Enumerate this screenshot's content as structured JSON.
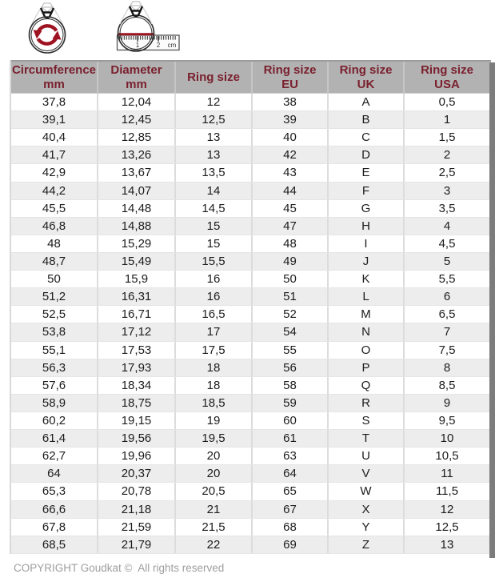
{
  "icons": {
    "circumference_icon": "ring-with-rotation-arrows",
    "diameter_icon": "ring-with-diameter-line-and-ruler",
    "ruler_labels": {
      "one": "1",
      "two": "2",
      "unit": "cm"
    }
  },
  "table": {
    "columns": [
      {
        "line1": "Circumference",
        "line2": "mm"
      },
      {
        "line1": "Diameter",
        "line2": "mm"
      },
      {
        "line1": "Ring size",
        "line2": ""
      },
      {
        "line1": "Ring size",
        "line2": "EU"
      },
      {
        "line1": "Ring size",
        "line2": "UK"
      },
      {
        "line1": "Ring size",
        "line2": "USA"
      }
    ],
    "rows": [
      [
        "37,8",
        "12,04",
        "12",
        "38",
        "A",
        "0,5"
      ],
      [
        "39,1",
        "12,45",
        "12,5",
        "39",
        "B",
        "1"
      ],
      [
        "40,4",
        "12,85",
        "13",
        "40",
        "C",
        "1,5"
      ],
      [
        "41,7",
        "13,26",
        "13",
        "42",
        "D",
        "2"
      ],
      [
        "42,9",
        "13,67",
        "13,5",
        "43",
        "E",
        "2,5"
      ],
      [
        "44,2",
        "14,07",
        "14",
        "44",
        "F",
        "3"
      ],
      [
        "45,5",
        "14,48",
        "14,5",
        "45",
        "G",
        "3,5"
      ],
      [
        "46,8",
        "14,88",
        "15",
        "47",
        "H",
        "4"
      ],
      [
        "48",
        "15,29",
        "15",
        "48",
        "I",
        "4,5"
      ],
      [
        "48,7",
        "15,49",
        "15,5",
        "49",
        "J",
        "5"
      ],
      [
        "50",
        "15,9",
        "16",
        "50",
        "K",
        "5,5"
      ],
      [
        "51,2",
        "16,31",
        "16",
        "51",
        "L",
        "6"
      ],
      [
        "52,5",
        "16,71",
        "16,5",
        "52",
        "M",
        "6,5"
      ],
      [
        "53,8",
        "17,12",
        "17",
        "54",
        "N",
        "7"
      ],
      [
        "55,1",
        "17,53",
        "17,5",
        "55",
        "O",
        "7,5"
      ],
      [
        "56,3",
        "17,93",
        "18",
        "56",
        "P",
        "8"
      ],
      [
        "57,6",
        "18,34",
        "18",
        "58",
        "Q",
        "8,5"
      ],
      [
        "58,9",
        "18,75",
        "18,5",
        "59",
        "R",
        "9"
      ],
      [
        "60,2",
        "19,15",
        "19",
        "60",
        "S",
        "9,5"
      ],
      [
        "61,4",
        "19,56",
        "19,5",
        "61",
        "T",
        "10"
      ],
      [
        "62,7",
        "19,96",
        "20",
        "63",
        "U",
        "10,5"
      ],
      [
        "64",
        "20,37",
        "20",
        "64",
        "V",
        "11"
      ],
      [
        "65,3",
        "20,78",
        "20,5",
        "65",
        "W",
        "11,5"
      ],
      [
        "66,6",
        "21,18",
        "21",
        "67",
        "X",
        "12"
      ],
      [
        "67,8",
        "21,59",
        "21,5",
        "68",
        "Y",
        "12,5"
      ],
      [
        "68,5",
        "21,79",
        "22",
        "69",
        "Z",
        "13"
      ]
    ]
  },
  "footer": {
    "copyright": "COPYRIGHT Goudkat ©  All rights reserved"
  },
  "colors": {
    "header_bg": "#b2b2b2",
    "header_text": "#7a202e",
    "row_alt_bg": "#ededed",
    "accent_red": "#9e1322",
    "scrollbar": "#7c7c7c",
    "footer_text": "#9e9e9e"
  }
}
